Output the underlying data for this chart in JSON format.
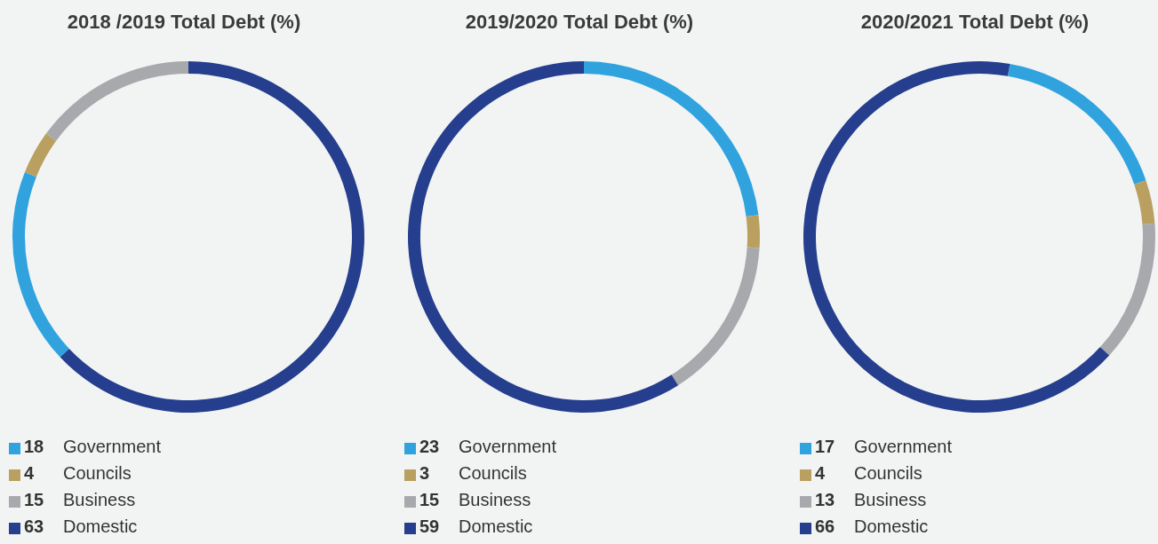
{
  "chart_data": [
    {
      "type": "donut",
      "title": "2018 /2019 Total Debt (%)",
      "categories": [
        "Government",
        "Councils",
        "Business",
        "Domestic"
      ],
      "values": [
        18,
        4,
        15,
        63
      ],
      "colors": [
        "#30a3df",
        "#b9a060",
        "#a7a9ac",
        "#253e8e"
      ],
      "legend": "bottom",
      "data_labels": true
    },
    {
      "type": "donut",
      "title": "2019/2020 Total Debt (%)",
      "categories": [
        "Government",
        "Councils",
        "Business",
        "Domestic"
      ],
      "values": [
        23,
        3,
        15,
        59
      ],
      "colors": [
        "#30a3df",
        "#b9a060",
        "#a7a9ac",
        "#253e8e"
      ],
      "legend": "bottom",
      "data_labels": true
    },
    {
      "type": "donut",
      "title": "2020/2021 Total Debt (%)",
      "categories": [
        "Government",
        "Councils",
        "Business",
        "Domestic"
      ],
      "values": [
        17,
        4,
        13,
        66
      ],
      "colors": [
        "#30a3df",
        "#b9a060",
        "#a7a9ac",
        "#253e8e"
      ],
      "legend": "bottom",
      "data_labels": true
    }
  ]
}
